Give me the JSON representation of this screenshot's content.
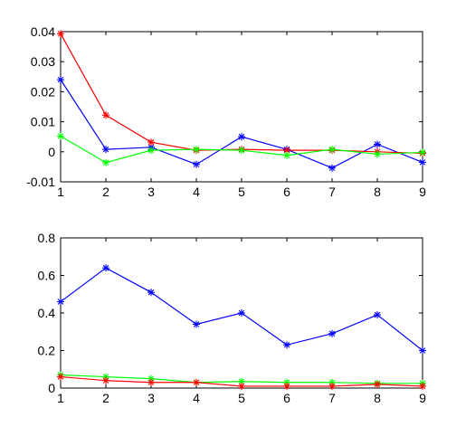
{
  "chart_data": [
    {
      "type": "line",
      "x": [
        1,
        2,
        3,
        4,
        5,
        6,
        7,
        8,
        9
      ],
      "xlim": [
        1,
        9
      ],
      "ylim": [
        -0.01,
        0.04
      ],
      "xticks": [
        "1",
        "2",
        "3",
        "4",
        "5",
        "6",
        "7",
        "8",
        "9"
      ],
      "yticks": [
        {
          "value": -0.01,
          "label": "-0.01"
        },
        {
          "value": 0,
          "label": "0"
        },
        {
          "value": 0.01,
          "label": "0.01"
        },
        {
          "value": 0.02,
          "label": "0.02"
        },
        {
          "value": 0.03,
          "label": "0.03"
        },
        {
          "value": 0.04,
          "label": "0.04"
        }
      ],
      "grid": false,
      "marker": "asterisk",
      "series": [
        {
          "color": "#0000ff",
          "values": [
            0.024,
            0.0008,
            0.0015,
            -0.0042,
            0.005,
            0.0008,
            -0.0054,
            0.0025,
            -0.0035
          ]
        },
        {
          "color": "#ff0000",
          "values": [
            0.0393,
            0.0122,
            0.0032,
            0.0005,
            0.0008,
            0.0005,
            0.0005,
            0.0,
            -0.0005
          ]
        },
        {
          "color": "#00ff00",
          "values": [
            0.0052,
            -0.0036,
            0.0005,
            0.0008,
            0.0005,
            -0.0012,
            0.0008,
            -0.0008,
            -0.0002
          ]
        }
      ]
    },
    {
      "type": "line",
      "x": [
        1,
        2,
        3,
        4,
        5,
        6,
        7,
        8,
        9
      ],
      "xlim": [
        1,
        9
      ],
      "ylim": [
        0,
        0.8
      ],
      "xticks": [
        "1",
        "2",
        "3",
        "4",
        "5",
        "6",
        "7",
        "8",
        "9"
      ],
      "yticks": [
        {
          "value": 0,
          "label": "0"
        },
        {
          "value": 0.2,
          "label": "0.2"
        },
        {
          "value": 0.4,
          "label": "0.4"
        },
        {
          "value": 0.6,
          "label": "0.6"
        },
        {
          "value": 0.8,
          "label": "0.8"
        }
      ],
      "grid": false,
      "marker": "asterisk",
      "series": [
        {
          "color": "#0000ff",
          "values": [
            0.46,
            0.64,
            0.51,
            0.34,
            0.4,
            0.23,
            0.29,
            0.39,
            0.2
          ]
        },
        {
          "color": "#00ff00",
          "values": [
            0.07,
            0.06,
            0.05,
            0.03,
            0.035,
            0.03,
            0.03,
            0.025,
            0.025
          ]
        },
        {
          "color": "#ff0000",
          "values": [
            0.06,
            0.04,
            0.03,
            0.03,
            0.01,
            0.01,
            0.01,
            0.02,
            0.01
          ]
        }
      ]
    }
  ]
}
